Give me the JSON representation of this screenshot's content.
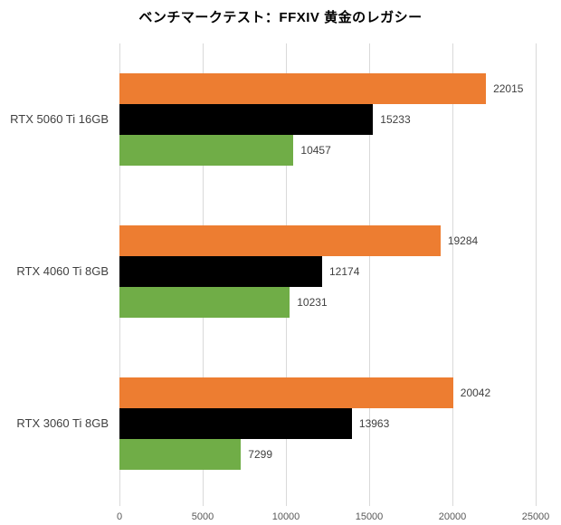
{
  "chart_data": {
    "type": "bar",
    "orientation": "horizontal",
    "title": "ベンチマークテスト：FFXIV 黄金のレガシー",
    "categories": [
      "RTX 5060 Ti 16GB",
      "RTX 4060 Ti 8GB",
      "RTX 3060 Ti 8GB"
    ],
    "series": [
      {
        "name": "series-1",
        "color": "#ED7D31",
        "values": [
          22015,
          19284,
          20042
        ]
      },
      {
        "name": "series-2",
        "color": "#000000",
        "values": [
          15233,
          12174,
          13963
        ]
      },
      {
        "name": "series-3",
        "color": "#70AD47",
        "values": [
          10457,
          10231,
          7299
        ]
      }
    ],
    "data_labels": [
      [
        "22015",
        "15233",
        "10457"
      ],
      [
        "19284",
        "12174",
        "10231"
      ],
      [
        "20042",
        "13963",
        "7299"
      ]
    ],
    "xlabel": "",
    "ylabel": "",
    "xlim": [
      0,
      25000
    ],
    "x_ticks": [
      0,
      5000,
      10000,
      15000,
      20000,
      25000
    ],
    "x_tick_labels": [
      "0",
      "5000",
      "10000",
      "15000",
      "20000",
      "25000"
    ],
    "grid": true,
    "legend": false,
    "colors": {
      "gridline": "#d9d9d9",
      "tick_label": "#595959",
      "category_label": "#404040",
      "value_label": "#404040",
      "title": "#000000",
      "background": "#ffffff"
    }
  }
}
